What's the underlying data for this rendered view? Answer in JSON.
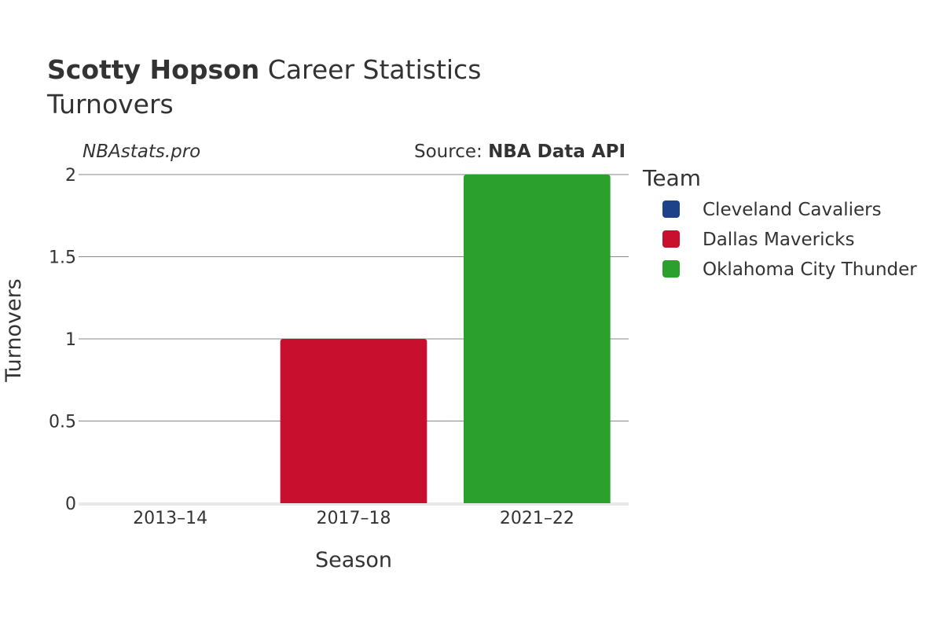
{
  "header": {
    "title_bold": "Scotty Hopson",
    "title_rest": " Career Statistics",
    "subtitle": "Turnovers"
  },
  "credits": {
    "site": "NBAstats.pro",
    "source_prefix": "Source: ",
    "source_name": "NBA Data API"
  },
  "legend": {
    "title": "Team",
    "placement": "right"
  },
  "chart_data": {
    "type": "bar",
    "xlabel": "Season",
    "ylabel": "Turnovers",
    "categories": [
      "2013–14",
      "2017–18",
      "2021–22"
    ],
    "ylim": [
      0,
      2
    ],
    "yticks": [
      0,
      0.5,
      1,
      1.5,
      2
    ],
    "ytick_labels": [
      "0",
      "0.5",
      "1",
      "1.5",
      "2"
    ],
    "grid": true,
    "series": [
      {
        "name": "Cleveland Cavaliers",
        "color": "#1d428a",
        "values": [
          0,
          null,
          null
        ]
      },
      {
        "name": "Dallas Mavericks",
        "color": "#c8102e",
        "values": [
          null,
          1,
          null
        ]
      },
      {
        "name": "Oklahoma City Thunder",
        "color": "#2ca02c",
        "values": [
          null,
          null,
          2
        ]
      }
    ]
  }
}
